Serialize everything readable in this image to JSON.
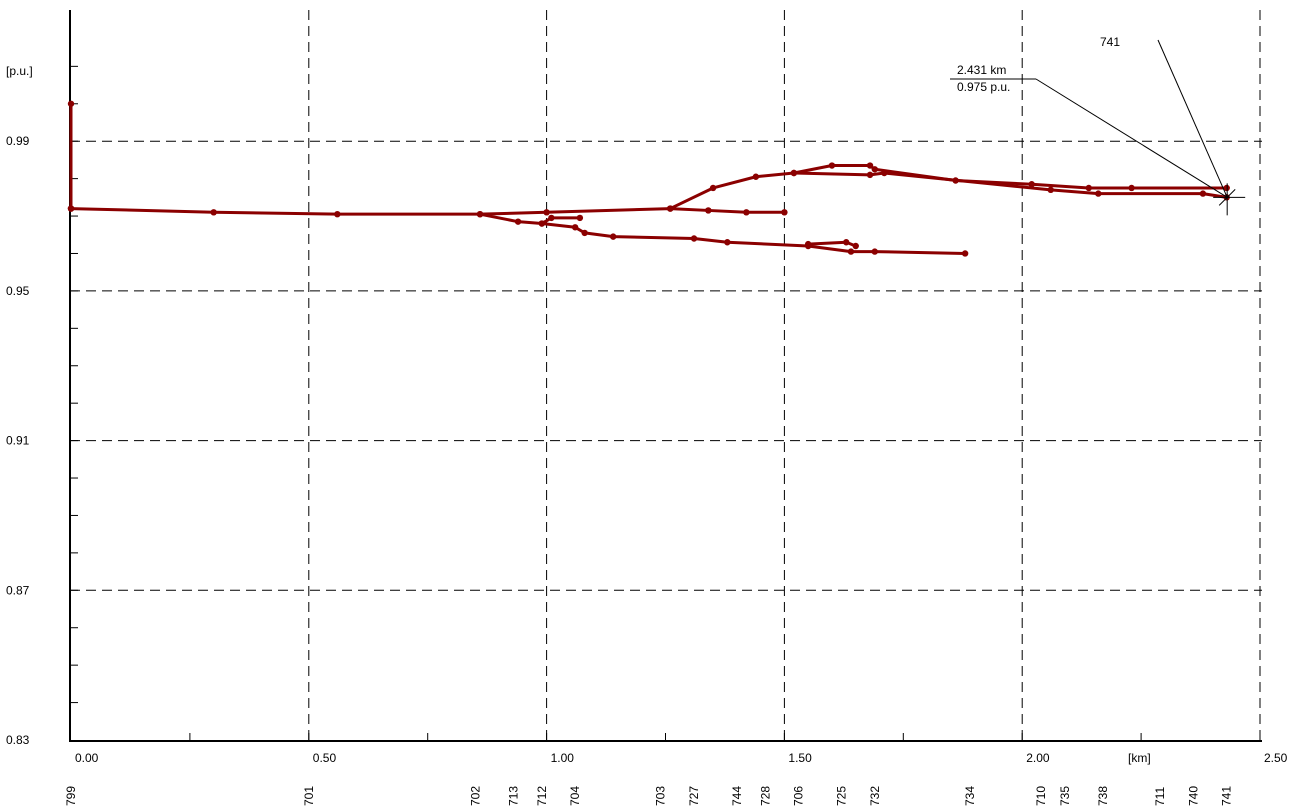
{
  "chart_data": {
    "type": "line",
    "title": "",
    "xlabel": "[km]",
    "ylabel": "[p.u.]",
    "xlim": [
      -0.01,
      2.5
    ],
    "ylim": [
      0.83,
      1.015
    ],
    "x_ticks": [
      {
        "value": 0.0,
        "label": "0.00"
      },
      {
        "value": 0.5,
        "label": "0.50"
      },
      {
        "value": 1.0,
        "label": "1.00"
      },
      {
        "value": 1.5,
        "label": "1.50"
      },
      {
        "value": 2.0,
        "label": "2.00"
      },
      {
        "value": 2.5,
        "label": "2.50"
      }
    ],
    "y_ticks": [
      {
        "value": 0.83,
        "label": "0.83"
      },
      {
        "value": 0.87,
        "label": "0.87"
      },
      {
        "value": 0.91,
        "label": "0.91"
      },
      {
        "value": 0.95,
        "label": "0.95"
      },
      {
        "value": 0.99,
        "label": "0.99"
      }
    ],
    "grid": true,
    "node_labels": [
      {
        "x": 0.0,
        "label": "799"
      },
      {
        "x": 0.5,
        "label": "701"
      },
      {
        "x": 0.85,
        "label": "702"
      },
      {
        "x": 0.93,
        "label": "713"
      },
      {
        "x": 0.99,
        "label": "712"
      },
      {
        "x": 1.06,
        "label": "704"
      },
      {
        "x": 1.24,
        "label": "703"
      },
      {
        "x": 1.31,
        "label": "727"
      },
      {
        "x": 1.4,
        "label": "744"
      },
      {
        "x": 1.46,
        "label": "728"
      },
      {
        "x": 1.53,
        "label": "706"
      },
      {
        "x": 1.62,
        "label": "725"
      },
      {
        "x": 1.69,
        "label": "732"
      },
      {
        "x": 1.89,
        "label": "734"
      },
      {
        "x": 2.04,
        "label": "710"
      },
      {
        "x": 2.09,
        "label": "735"
      },
      {
        "x": 2.17,
        "label": "738"
      },
      {
        "x": 2.29,
        "label": "711"
      },
      {
        "x": 2.36,
        "label": "740"
      },
      {
        "x": 2.43,
        "label": "741"
      }
    ],
    "series": [
      {
        "points": [
          [
            0.0,
            1.0
          ],
          [
            0.0,
            0.972
          ]
        ]
      },
      {
        "points": [
          [
            0.0,
            0.972
          ],
          [
            0.3,
            0.971
          ],
          [
            0.56,
            0.9705
          ],
          [
            0.86,
            0.9705
          ],
          [
            1.0,
            0.971
          ],
          [
            1.26,
            0.972
          ],
          [
            1.34,
            0.9715
          ],
          [
            1.42,
            0.971
          ],
          [
            1.5,
            0.971
          ]
        ]
      },
      {
        "points": [
          [
            1.26,
            0.972
          ],
          [
            1.35,
            0.9775
          ],
          [
            1.44,
            0.9805
          ],
          [
            1.52,
            0.9815
          ],
          [
            1.6,
            0.9835
          ],
          [
            1.68,
            0.9835
          ],
          [
            1.69,
            0.9825
          ],
          [
            1.86,
            0.9795
          ],
          [
            2.02,
            0.9785
          ],
          [
            2.14,
            0.9775
          ],
          [
            2.23,
            0.9775
          ],
          [
            2.43,
            0.9775
          ]
        ]
      },
      {
        "points": [
          [
            1.52,
            0.9815
          ],
          [
            1.68,
            0.981
          ],
          [
            1.71,
            0.9815
          ],
          [
            2.06,
            0.977
          ],
          [
            2.16,
            0.976
          ],
          [
            2.38,
            0.976
          ],
          [
            2.43,
            0.975
          ]
        ]
      },
      {
        "points": [
          [
            0.86,
            0.9705
          ],
          [
            0.94,
            0.9685
          ],
          [
            0.99,
            0.968
          ],
          [
            1.06,
            0.967
          ],
          [
            1.08,
            0.9655
          ],
          [
            1.14,
            0.9645
          ],
          [
            1.31,
            0.964
          ],
          [
            1.38,
            0.963
          ],
          [
            1.55,
            0.962
          ],
          [
            1.64,
            0.9605
          ],
          [
            1.69,
            0.9605
          ],
          [
            1.88,
            0.96
          ]
        ]
      },
      {
        "points": [
          [
            0.99,
            0.968
          ],
          [
            1.01,
            0.9695
          ],
          [
            1.07,
            0.9695
          ]
        ]
      },
      {
        "points": [
          [
            1.55,
            0.9625
          ],
          [
            1.63,
            0.963
          ],
          [
            1.65,
            0.962
          ]
        ]
      }
    ],
    "cursor": {
      "x": 2.431,
      "y": 0.975,
      "distance_label": "2.431 km",
      "value_label": "0.975 p.u.",
      "node_name": "741"
    }
  }
}
